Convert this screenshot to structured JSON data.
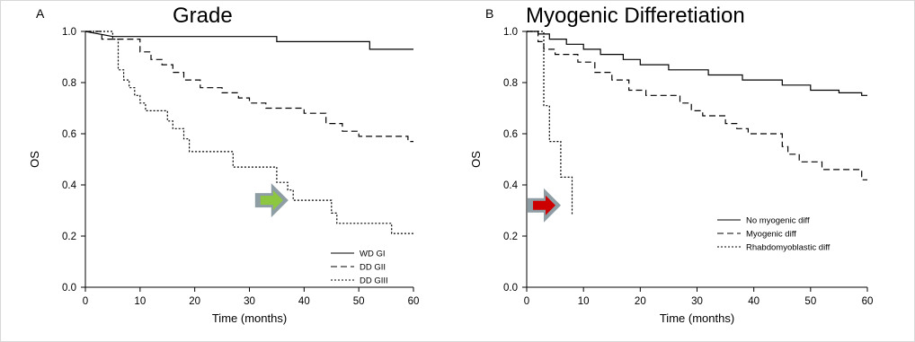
{
  "chart_data": [
    {
      "type": "line",
      "panel_label": "A",
      "title": "Grade",
      "xlabel": "Time (months)",
      "ylabel": "OS",
      "xlim": [
        0,
        60
      ],
      "ylim": [
        0,
        1.0
      ],
      "x_ticks": [
        0,
        10,
        20,
        30,
        40,
        50,
        60
      ],
      "y_ticks": [
        0.0,
        0.2,
        0.4,
        0.6,
        0.8,
        1.0
      ],
      "grid": false,
      "legend_position": "bottom-right",
      "arrow": {
        "color": "#8dc63f",
        "x": 34,
        "y": 0.34
      },
      "series": [
        {
          "name": "WD GI",
          "dash": "solid",
          "points": [
            [
              0,
              1.0
            ],
            [
              5,
              0.98
            ],
            [
              35,
              0.98
            ],
            [
              35,
              0.96
            ],
            [
              52,
              0.96
            ],
            [
              52,
              0.93
            ],
            [
              60,
              0.93
            ]
          ]
        },
        {
          "name": "DD GII",
          "dash": "dashed",
          "points": [
            [
              0,
              1.0
            ],
            [
              3,
              1.0
            ],
            [
              3,
              0.97
            ],
            [
              10,
              0.97
            ],
            [
              10,
              0.92
            ],
            [
              12,
              0.92
            ],
            [
              12,
              0.89
            ],
            [
              14,
              0.89
            ],
            [
              14,
              0.87
            ],
            [
              16,
              0.87
            ],
            [
              16,
              0.84
            ],
            [
              18,
              0.84
            ],
            [
              18,
              0.81
            ],
            [
              21,
              0.81
            ],
            [
              21,
              0.78
            ],
            [
              25,
              0.78
            ],
            [
              25,
              0.76
            ],
            [
              28,
              0.76
            ],
            [
              28,
              0.74
            ],
            [
              30,
              0.74
            ],
            [
              30,
              0.72
            ],
            [
              33,
              0.72
            ],
            [
              33,
              0.7
            ],
            [
              40,
              0.7
            ],
            [
              40,
              0.68
            ],
            [
              44,
              0.68
            ],
            [
              44,
              0.64
            ],
            [
              47,
              0.64
            ],
            [
              47,
              0.61
            ],
            [
              50,
              0.61
            ],
            [
              50,
              0.59
            ],
            [
              59,
              0.59
            ],
            [
              59,
              0.57
            ],
            [
              60,
              0.57
            ]
          ]
        },
        {
          "name": "DD GIII",
          "dash": "dotted",
          "points": [
            [
              0,
              1.0
            ],
            [
              5,
              1.0
            ],
            [
              5,
              0.97
            ],
            [
              6,
              0.97
            ],
            [
              6,
              0.85
            ],
            [
              7,
              0.85
            ],
            [
              7,
              0.81
            ],
            [
              8,
              0.81
            ],
            [
              8,
              0.78
            ],
            [
              9,
              0.78
            ],
            [
              9,
              0.75
            ],
            [
              10,
              0.75
            ],
            [
              10,
              0.72
            ],
            [
              11,
              0.72
            ],
            [
              11,
              0.69
            ],
            [
              15,
              0.69
            ],
            [
              15,
              0.65
            ],
            [
              16,
              0.65
            ],
            [
              16,
              0.62
            ],
            [
              18,
              0.62
            ],
            [
              18,
              0.58
            ],
            [
              19,
              0.58
            ],
            [
              19,
              0.53
            ],
            [
              27,
              0.53
            ],
            [
              27,
              0.47
            ],
            [
              35,
              0.47
            ],
            [
              35,
              0.41
            ],
            [
              37,
              0.41
            ],
            [
              37,
              0.38
            ],
            [
              38,
              0.38
            ],
            [
              38,
              0.34
            ],
            [
              45,
              0.34
            ],
            [
              45,
              0.29
            ],
            [
              46,
              0.29
            ],
            [
              46,
              0.25
            ],
            [
              56,
              0.25
            ],
            [
              56,
              0.21
            ],
            [
              60,
              0.21
            ]
          ]
        }
      ]
    },
    {
      "type": "line",
      "panel_label": "B",
      "title": "Myogenic Differetiation",
      "xlabel": "Time (months)",
      "ylabel": "OS",
      "xlim": [
        0,
        60
      ],
      "ylim": [
        0,
        1.0
      ],
      "x_ticks": [
        0,
        10,
        20,
        30,
        40,
        50,
        60
      ],
      "y_ticks": [
        0.0,
        0.2,
        0.4,
        0.6,
        0.8,
        1.0
      ],
      "grid": false,
      "legend_position": "bottom-right",
      "arrow": {
        "color": "#cc0000",
        "x": 3,
        "y": 0.32
      },
      "series": [
        {
          "name": "No myogenic diff",
          "dash": "solid",
          "points": [
            [
              0,
              1.0
            ],
            [
              2,
              1.0
            ],
            [
              2,
              0.99
            ],
            [
              4,
              0.99
            ],
            [
              4,
              0.97
            ],
            [
              7,
              0.97
            ],
            [
              7,
              0.95
            ],
            [
              10,
              0.95
            ],
            [
              10,
              0.93
            ],
            [
              13,
              0.93
            ],
            [
              13,
              0.91
            ],
            [
              17,
              0.91
            ],
            [
              17,
              0.89
            ],
            [
              20,
              0.89
            ],
            [
              20,
              0.87
            ],
            [
              25,
              0.87
            ],
            [
              25,
              0.85
            ],
            [
              32,
              0.85
            ],
            [
              32,
              0.83
            ],
            [
              38,
              0.83
            ],
            [
              38,
              0.81
            ],
            [
              45,
              0.81
            ],
            [
              45,
              0.79
            ],
            [
              50,
              0.79
            ],
            [
              50,
              0.77
            ],
            [
              55,
              0.77
            ],
            [
              55,
              0.76
            ],
            [
              59,
              0.76
            ],
            [
              59,
              0.75
            ],
            [
              60,
              0.75
            ]
          ]
        },
        {
          "name": "Myogenic diff",
          "dash": "dashed",
          "points": [
            [
              0,
              1.0
            ],
            [
              2,
              1.0
            ],
            [
              2,
              0.96
            ],
            [
              3,
              0.96
            ],
            [
              3,
              0.93
            ],
            [
              5,
              0.93
            ],
            [
              5,
              0.91
            ],
            [
              9,
              0.91
            ],
            [
              9,
              0.88
            ],
            [
              12,
              0.88
            ],
            [
              12,
              0.84
            ],
            [
              15,
              0.84
            ],
            [
              15,
              0.81
            ],
            [
              18,
              0.81
            ],
            [
              18,
              0.77
            ],
            [
              21,
              0.77
            ],
            [
              21,
              0.75
            ],
            [
              27,
              0.75
            ],
            [
              27,
              0.72
            ],
            [
              29,
              0.72
            ],
            [
              29,
              0.69
            ],
            [
              31,
              0.69
            ],
            [
              31,
              0.67
            ],
            [
              35,
              0.67
            ],
            [
              35,
              0.64
            ],
            [
              37,
              0.64
            ],
            [
              37,
              0.62
            ],
            [
              39,
              0.62
            ],
            [
              39,
              0.6
            ],
            [
              45,
              0.6
            ],
            [
              45,
              0.55
            ],
            [
              46,
              0.55
            ],
            [
              46,
              0.52
            ],
            [
              48,
              0.52
            ],
            [
              48,
              0.49
            ],
            [
              52,
              0.49
            ],
            [
              52,
              0.46
            ],
            [
              59,
              0.46
            ],
            [
              59,
              0.42
            ],
            [
              60,
              0.42
            ]
          ]
        },
        {
          "name": "Rhabdomyoblastic diff",
          "dash": "dotted",
          "points": [
            [
              0,
              1.0
            ],
            [
              3,
              1.0
            ],
            [
              3,
              0.71
            ],
            [
              4,
              0.71
            ],
            [
              4,
              0.57
            ],
            [
              6,
              0.57
            ],
            [
              6,
              0.43
            ],
            [
              8,
              0.43
            ],
            [
              8,
              0.28
            ]
          ]
        }
      ]
    }
  ]
}
